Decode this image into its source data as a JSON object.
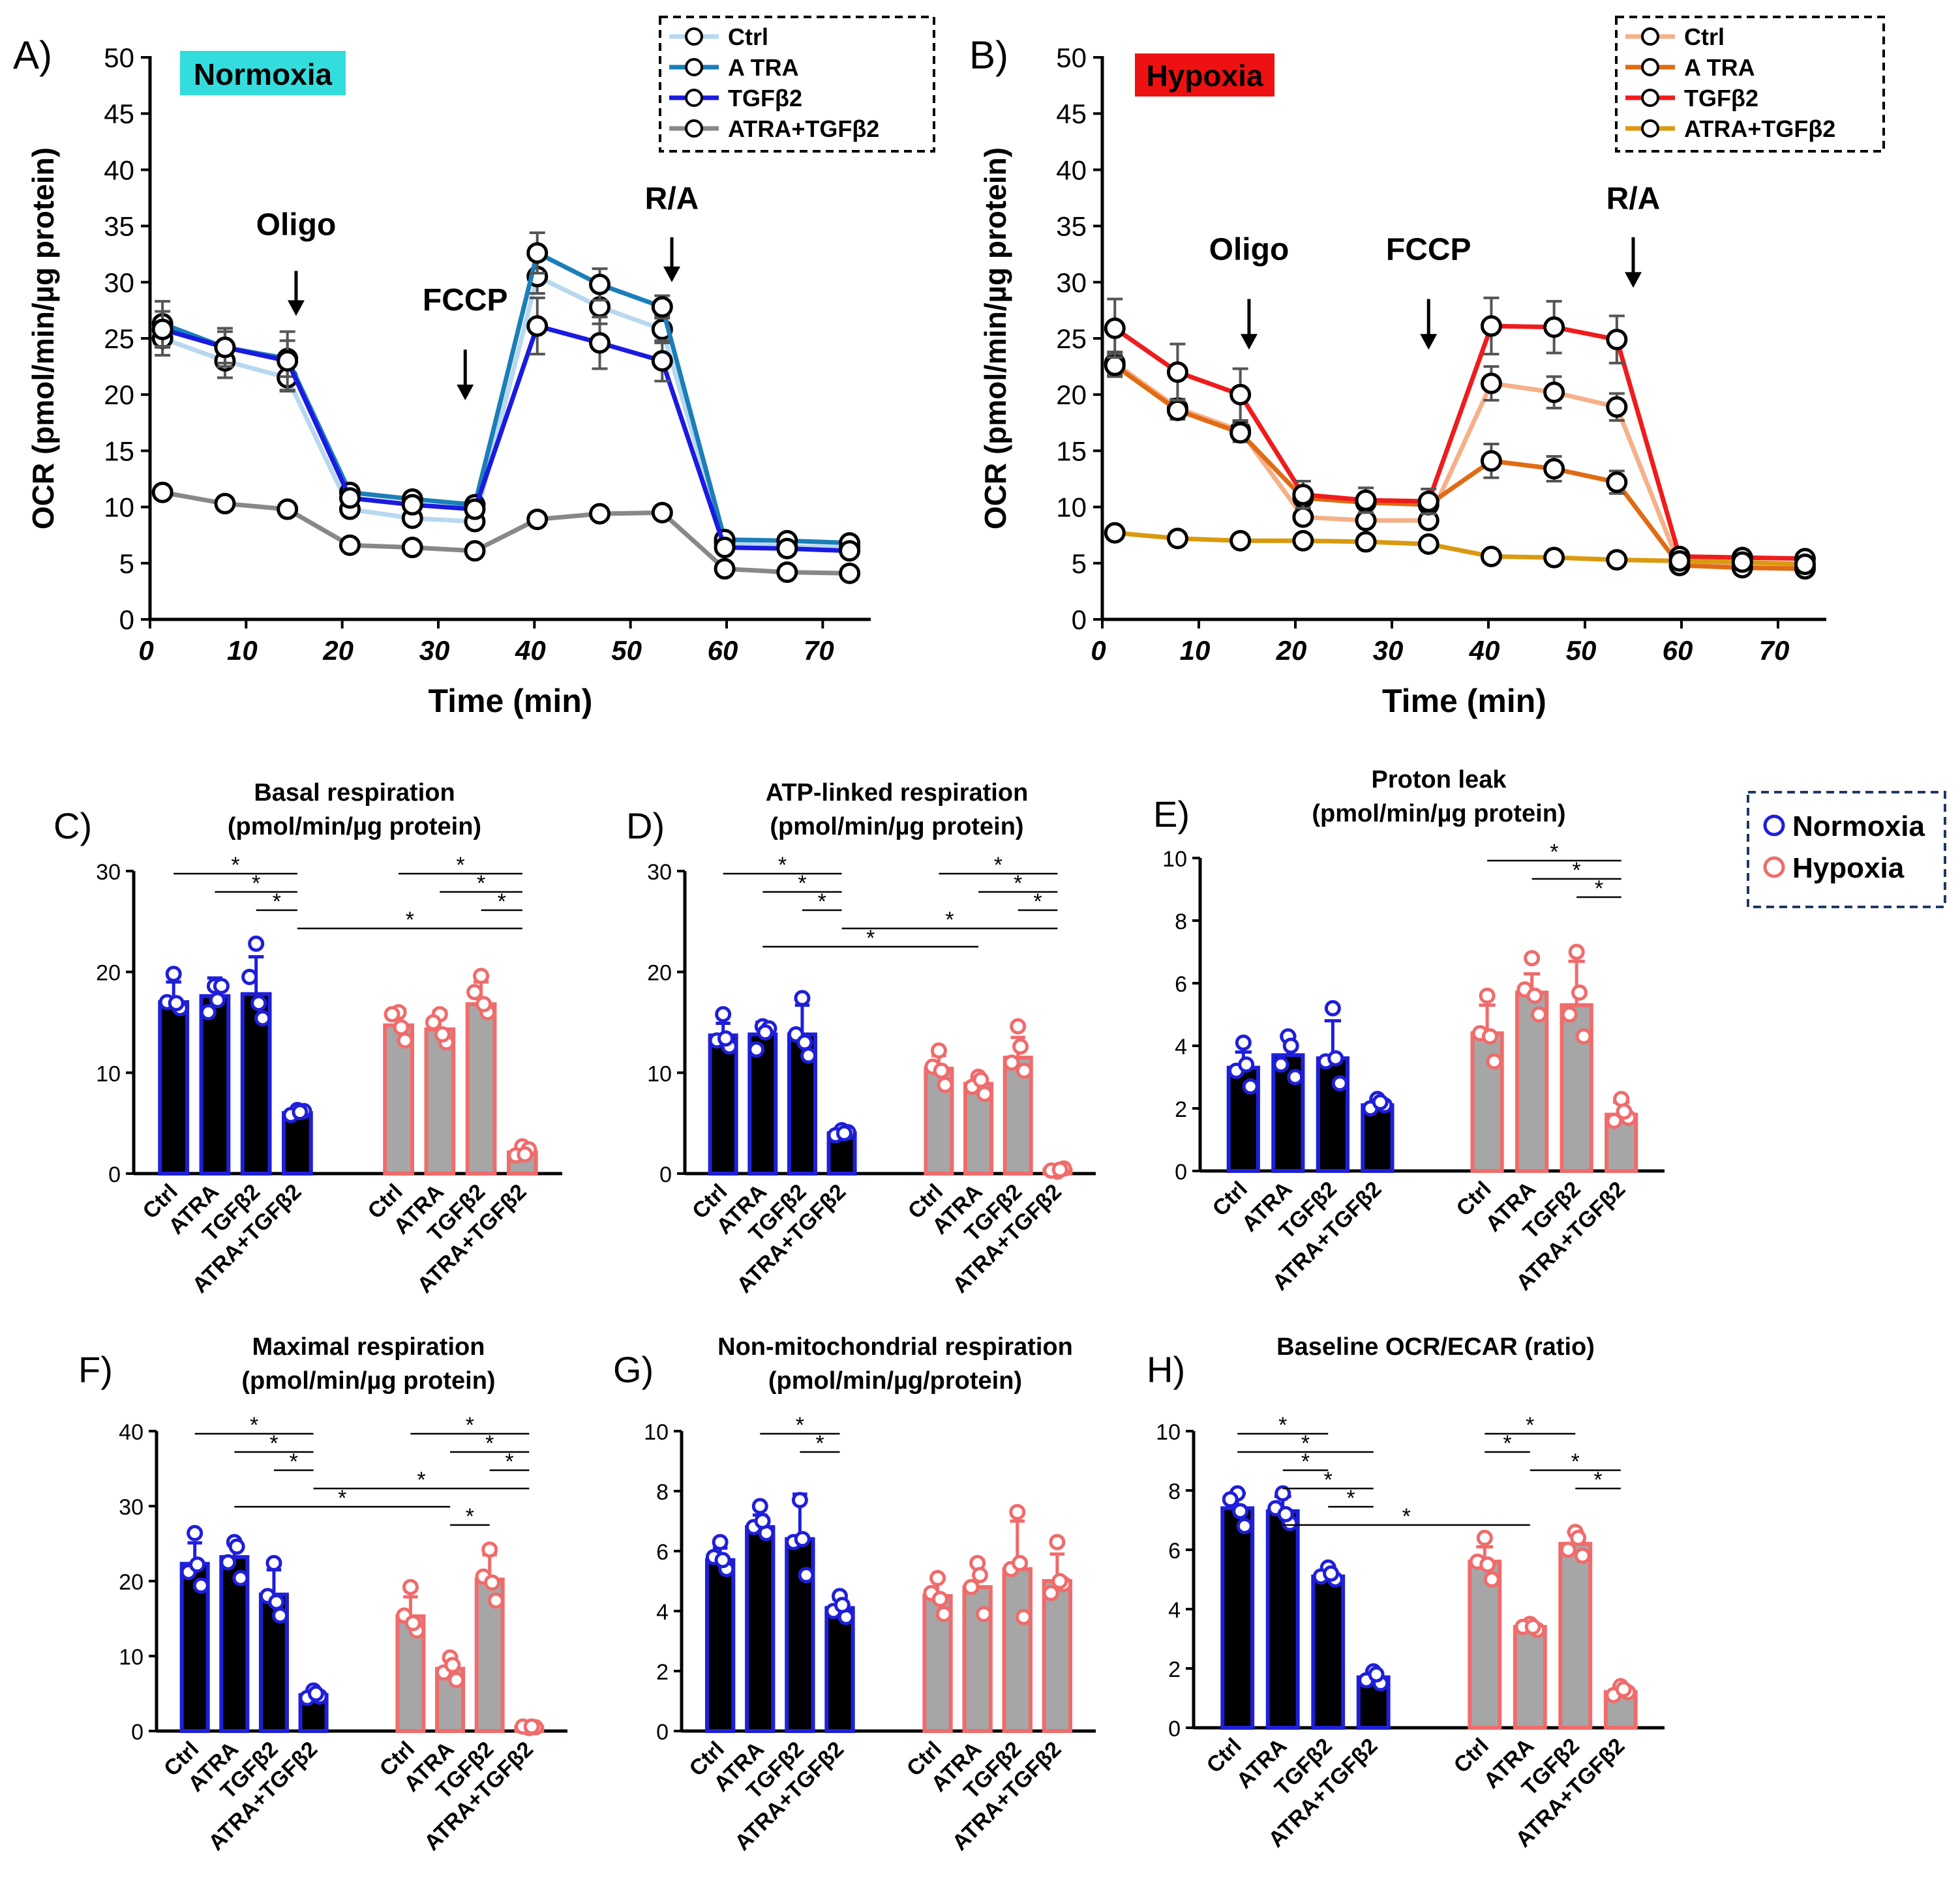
{
  "colors": {
    "normoxia_edge": "#1f1fd9",
    "hypoxia_edge": "#f06b6b",
    "normoxia_fill": "#000000",
    "hypoxia_fill": "#a6a6a6",
    "normoxia_highlight": "#33dddd",
    "hypoxia_highlight": "#ee1111"
  },
  "legend_bottom": {
    "items": [
      "Normoxia",
      "Hypoxia"
    ]
  },
  "chart_data": [
    {
      "panel": "A)",
      "type": "line",
      "badge": "Normoxia",
      "xlabel": "Time (min)",
      "ylabel": "OCR (pmol/min/µg protein)",
      "xlim": [
        0,
        75
      ],
      "ylim": [
        0,
        50
      ],
      "xticks": [
        0,
        10,
        20,
        30,
        40,
        50,
        60,
        70
      ],
      "yticks": [
        0,
        5,
        10,
        15,
        20,
        25,
        30,
        35,
        40,
        45,
        50
      ],
      "x": [
        1.3,
        7.8,
        14.3,
        20.8,
        27.3,
        33.8,
        40.3,
        46.8,
        53.3,
        59.8,
        66.3,
        72.8
      ],
      "series": [
        {
          "name": "Ctrl",
          "color": "#b8d8f0",
          "values": [
            25.0,
            23.0,
            21.5,
            9.8,
            9.0,
            8.7,
            30.5,
            27.8,
            25.8,
            6.8,
            6.5,
            6.4
          ],
          "err": [
            1.5,
            1.5,
            1.2,
            0.6,
            0.6,
            0.6,
            1.5,
            1.5,
            1.2,
            0.4,
            0.4,
            0.4
          ]
        },
        {
          "name": "A TRA",
          "color": "#1a7fb8",
          "values": [
            26.3,
            24.2,
            23.2,
            11.3,
            10.7,
            10.2,
            32.6,
            29.8,
            27.8,
            7.1,
            7.0,
            6.8
          ],
          "err": [
            2.0,
            1.7,
            1.6,
            0.6,
            0.6,
            0.6,
            1.8,
            1.4,
            1.0,
            0.4,
            0.4,
            0.4
          ]
        },
        {
          "name": "TGFβ2",
          "color": "#1a1ae0",
          "values": [
            25.8,
            24.2,
            23.0,
            10.8,
            10.2,
            9.8,
            26.1,
            24.6,
            23.0,
            6.4,
            6.3,
            6.1
          ],
          "err": [
            1.6,
            1.4,
            2.6,
            0.6,
            0.6,
            0.6,
            2.5,
            2.3,
            1.8,
            0.4,
            0.4,
            0.4
          ]
        },
        {
          "name": "ATRA+TGFβ2",
          "color": "#888888",
          "values": [
            11.3,
            10.3,
            9.8,
            6.6,
            6.4,
            6.1,
            8.9,
            9.4,
            9.5,
            4.5,
            4.2,
            4.1
          ],
          "err": [
            0.4,
            0.4,
            0.4,
            0.3,
            0.3,
            0.3,
            0.4,
            0.4,
            0.4,
            0.3,
            0.3,
            0.3
          ]
        }
      ],
      "annotations": [
        {
          "label": "Oligo",
          "x": 15.2,
          "arrow_top": 31,
          "arrow_bottom": 27,
          "label_y": 34.2
        },
        {
          "label": "FCCP",
          "x": 32.8,
          "arrow_top": 24,
          "arrow_bottom": 19.5,
          "label_y": 27.5
        },
        {
          "label": "R/A",
          "x": 54.3,
          "arrow_top": 34,
          "arrow_bottom": 30,
          "label_y": 36.5
        }
      ]
    },
    {
      "panel": "B)",
      "type": "line",
      "badge": "Hypoxia",
      "xlabel": "Time (min)",
      "ylabel": "OCR (pmol/min/µg protein)",
      "xlim": [
        0,
        75
      ],
      "ylim": [
        0,
        50
      ],
      "xticks": [
        0,
        10,
        20,
        30,
        40,
        50,
        60,
        70
      ],
      "yticks": [
        0,
        5,
        10,
        15,
        20,
        25,
        30,
        35,
        40,
        45,
        50
      ],
      "x": [
        1.3,
        7.8,
        14.3,
        20.8,
        27.3,
        33.8,
        40.3,
        46.8,
        53.3,
        59.8,
        66.3,
        72.8
      ],
      "series": [
        {
          "name": "Ctrl",
          "color": "#f6b088",
          "values": [
            22.8,
            18.8,
            16.8,
            9.1,
            8.8,
            8.8,
            21.0,
            20.2,
            18.9,
            4.8,
            4.7,
            4.6
          ],
          "err": [
            1.0,
            0.8,
            0.8,
            0.6,
            0.5,
            0.5,
            1.5,
            1.4,
            1.2,
            0.4,
            0.4,
            0.4
          ]
        },
        {
          "name": "A TRA",
          "color": "#e06b14",
          "values": [
            22.6,
            18.6,
            16.6,
            10.8,
            10.4,
            10.2,
            14.1,
            13.4,
            12.2,
            4.8,
            4.6,
            4.5
          ],
          "err": [
            1.0,
            0.8,
            0.8,
            0.6,
            0.5,
            0.5,
            1.5,
            1.1,
            1.0,
            0.4,
            0.4,
            0.4
          ]
        },
        {
          "name": "TGFβ2",
          "color": "#ee1c1c",
          "values": [
            25.9,
            22.0,
            20.0,
            11.1,
            10.6,
            10.5,
            26.1,
            26.0,
            24.9,
            5.6,
            5.5,
            5.4
          ],
          "err": [
            2.6,
            2.5,
            2.3,
            1.2,
            1.1,
            1.1,
            2.5,
            2.3,
            2.1,
            0.4,
            0.4,
            0.4
          ]
        },
        {
          "name": "ATRA+TGFβ2",
          "color": "#d99a0f",
          "values": [
            7.7,
            7.2,
            7.0,
            7.0,
            6.9,
            6.7,
            5.6,
            5.5,
            5.3,
            5.2,
            5.1,
            4.9
          ],
          "err": [
            0.3,
            0.3,
            0.3,
            0.3,
            0.3,
            0.3,
            0.3,
            0.3,
            0.3,
            0.3,
            0.3,
            0.3
          ]
        }
      ],
      "annotations": [
        {
          "label": "Oligo",
          "x": 15.2,
          "arrow_top": 28.5,
          "arrow_bottom": 24,
          "label_y": 32.0
        },
        {
          "label": "FCCP",
          "x": 33.8,
          "arrow_top": 28.5,
          "arrow_bottom": 24,
          "label_y": 32.0
        },
        {
          "label": "R/A",
          "x": 55.0,
          "arrow_top": 34,
          "arrow_bottom": 29.5,
          "label_y": 36.5
        }
      ]
    },
    {
      "panel": "C)",
      "type": "bar",
      "title": [
        "Basal respiration",
        "(pmol/min/µg protein)"
      ],
      "ylim": [
        0,
        30
      ],
      "yticks": [
        0,
        10,
        20,
        30
      ],
      "categories": [
        "Ctrl",
        "ATRA",
        "TGFβ2",
        "ATRA+TGFβ2",
        "Ctrl",
        "ATRA",
        "TGFβ2",
        "ATRA+TGFβ2"
      ],
      "groups": [
        "Normoxia",
        "Normoxia",
        "Normoxia",
        "Normoxia",
        "Hypoxia",
        "Hypoxia",
        "Hypoxia",
        "Hypoxia"
      ],
      "values": [
        17.0,
        17.6,
        17.8,
        6.0,
        14.7,
        14.3,
        16.8,
        2.1
      ],
      "err": [
        2.0,
        1.8,
        3.7,
        0.4,
        1.6,
        1.8,
        2.2,
        0.6
      ],
      "points": [
        [
          19.8,
          17.0,
          16.4,
          16.9
        ],
        [
          18.6,
          16.0,
          18.6,
          17.2
        ],
        [
          22.8,
          19.5,
          15.4,
          16.9
        ],
        [
          6.3,
          5.8,
          6.2,
          6.1
        ],
        [
          16.0,
          15.8,
          13.2,
          14.5
        ],
        [
          15.8,
          15.0,
          13.0,
          13.8
        ],
        [
          19.6,
          18.0,
          16.0,
          16.8
        ],
        [
          2.7,
          1.8,
          2.4,
          1.9
        ]
      ],
      "sig": [
        {
          "from": 0,
          "to": 3,
          "level": 0
        },
        {
          "from": 1,
          "to": 3,
          "level": 1
        },
        {
          "from": 2,
          "to": 3,
          "level": 2
        },
        {
          "from": 4,
          "to": 7,
          "level": 0
        },
        {
          "from": 5,
          "to": 7,
          "level": 1
        },
        {
          "from": 6,
          "to": 7,
          "level": 2
        },
        {
          "from": 3,
          "to": 7,
          "level": 3
        }
      ]
    },
    {
      "panel": "D)",
      "type": "bar",
      "title": [
        "ATP-linked respiration",
        "(pmol/min/µg protein)"
      ],
      "ylim": [
        0,
        30
      ],
      "yticks": [
        0,
        10,
        20,
        30
      ],
      "categories": [
        "Ctrl",
        "ATRA",
        "TGFβ2",
        "ATRA+TGFβ2",
        "Ctrl",
        "ATRA",
        "TGFβ2",
        "ATRA+TGFβ2"
      ],
      "groups": [
        "Normoxia",
        "Normoxia",
        "Normoxia",
        "Normoxia",
        "Hypoxia",
        "Hypoxia",
        "Hypoxia",
        "Hypoxia"
      ],
      "values": [
        13.7,
        13.8,
        13.8,
        4.0,
        10.4,
        8.9,
        11.5,
        0.4
      ],
      "err": [
        1.2,
        1.2,
        2.9,
        0.3,
        1.3,
        0.9,
        2.0,
        0.2
      ],
      "points": [
        [
          15.8,
          13.2,
          12.6,
          13.4
        ],
        [
          14.6,
          12.3,
          14.4,
          14.0
        ],
        [
          17.4,
          13.8,
          11.7,
          13.0
        ],
        [
          4.3,
          3.8,
          4.1,
          4.0
        ],
        [
          12.2,
          10.6,
          8.8,
          10.2
        ],
        [
          9.6,
          8.6,
          7.9,
          9.3
        ],
        [
          14.6,
          11.0,
          10.2,
          12.6
        ],
        [
          0.2,
          0.3,
          0.5,
          0.4
        ]
      ],
      "sig": [
        {
          "from": 0,
          "to": 3,
          "level": 0
        },
        {
          "from": 1,
          "to": 3,
          "level": 1
        },
        {
          "from": 2,
          "to": 3,
          "level": 2
        },
        {
          "from": 4,
          "to": 7,
          "level": 0
        },
        {
          "from": 5,
          "to": 7,
          "level": 1
        },
        {
          "from": 6,
          "to": 7,
          "level": 2
        },
        {
          "from": 3,
          "to": 7,
          "level": 3
        },
        {
          "from": 1,
          "to": 5,
          "level": 4
        }
      ]
    },
    {
      "panel": "E)",
      "type": "bar",
      "title": [
        "Proton leak",
        "(pmol/min/µg protein)"
      ],
      "ylim": [
        0,
        10
      ],
      "yticks": [
        0,
        2,
        4,
        6,
        8,
        10
      ],
      "categories": [
        "Ctrl",
        "ATRA",
        "TGFβ2",
        "ATRA+TGFβ2",
        "Ctrl",
        "ATRA",
        "TGFβ2",
        "ATRA+TGFβ2"
      ],
      "groups": [
        "Normoxia",
        "Normoxia",
        "Normoxia",
        "Normoxia",
        "Hypoxia",
        "Hypoxia",
        "Hypoxia",
        "Hypoxia"
      ],
      "values": [
        3.3,
        3.7,
        3.6,
        2.1,
        4.4,
        5.7,
        5.3,
        1.8
      ],
      "err": [
        0.5,
        0.6,
        1.2,
        0.2,
        0.9,
        0.6,
        1.4,
        0.4
      ],
      "points": [
        [
          4.1,
          3.2,
          2.7,
          3.4
        ],
        [
          4.3,
          3.4,
          3.0,
          4.0
        ],
        [
          5.2,
          3.5,
          2.8,
          3.6
        ],
        [
          2.3,
          2.0,
          2.1,
          2.2
        ],
        [
          5.6,
          4.4,
          3.5,
          4.3
        ],
        [
          6.8,
          5.8,
          5.0,
          5.6
        ],
        [
          7.0,
          5.0,
          4.3,
          5.7
        ],
        [
          2.3,
          1.6,
          1.7,
          1.9
        ]
      ],
      "sig": [
        {
          "from": 4,
          "to": 7,
          "level": 0
        },
        {
          "from": 5,
          "to": 7,
          "level": 1
        },
        {
          "from": 6,
          "to": 7,
          "level": 2
        }
      ]
    },
    {
      "panel": "F)",
      "type": "bar",
      "title": [
        "Maximal respiration",
        "(pmol/min/µg protein)"
      ],
      "ylim": [
        0,
        40
      ],
      "yticks": [
        0,
        10,
        20,
        30,
        40
      ],
      "categories": [
        "Ctrl",
        "ATRA",
        "TGFβ2",
        "ATRA+TGFβ2",
        "Ctrl",
        "ATRA",
        "TGFβ2",
        "ATRA+TGFβ2"
      ],
      "groups": [
        "Normoxia",
        "Normoxia",
        "Normoxia",
        "Normoxia",
        "Hypoxia",
        "Hypoxia",
        "Hypoxia",
        "Hypoxia"
      ],
      "values": [
        22.3,
        23.2,
        18.2,
        4.8,
        15.3,
        8.3,
        20.2,
        0.5
      ],
      "err": [
        2.8,
        2.0,
        3.3,
        0.5,
        2.6,
        1.5,
        3.3,
        0.3
      ],
      "points": [
        [
          26.4,
          21.2,
          19.4,
          22.2
        ],
        [
          25.2,
          22.5,
          20.4,
          24.6
        ],
        [
          22.4,
          18.0,
          15.4,
          17.2
        ],
        [
          5.4,
          4.4,
          4.6,
          5.0
        ],
        [
          19.2,
          15.4,
          13.4,
          14.4
        ],
        [
          9.8,
          7.8,
          6.8,
          8.8
        ],
        [
          24.2,
          20.6,
          17.4,
          19.8
        ],
        [
          0.4,
          0.6,
          0.5,
          0.6
        ]
      ],
      "sig": [
        {
          "from": 0,
          "to": 3,
          "level": 0
        },
        {
          "from": 1,
          "to": 3,
          "level": 1
        },
        {
          "from": 2,
          "to": 3,
          "level": 2
        },
        {
          "from": 4,
          "to": 7,
          "level": 0
        },
        {
          "from": 5,
          "to": 7,
          "level": 1
        },
        {
          "from": 6,
          "to": 7,
          "level": 2
        },
        {
          "from": 3,
          "to": 7,
          "level": 3
        },
        {
          "from": 1,
          "to": 5,
          "level": 4
        },
        {
          "from": 5,
          "to": 6,
          "level": 5
        }
      ]
    },
    {
      "panel": "G)",
      "type": "bar",
      "title": [
        "Non-mitochondrial respiration",
        "(pmol/min/µg/protein)"
      ],
      "ylim": [
        0,
        10
      ],
      "yticks": [
        0,
        2,
        4,
        6,
        8,
        10
      ],
      "categories": [
        "Ctrl",
        "ATRA",
        "TGFβ2",
        "ATRA+TGFβ2",
        "Ctrl",
        "ATRA",
        "TGFβ2",
        "ATRA+TGFβ2"
      ],
      "groups": [
        "Normoxia",
        "Normoxia",
        "Normoxia",
        "Normoxia",
        "Hypoxia",
        "Hypoxia",
        "Hypoxia",
        "Hypoxia"
      ],
      "values": [
        5.7,
        6.8,
        6.4,
        4.1,
        4.5,
        4.8,
        5.4,
        5.0
      ],
      "err": [
        0.4,
        0.4,
        1.5,
        0.3,
        0.6,
        0.9,
        1.6,
        0.9
      ],
      "points": [
        [
          6.3,
          5.8,
          5.4,
          5.7
        ],
        [
          7.5,
          6.8,
          6.6,
          7.0
        ],
        [
          7.7,
          6.3,
          5.2,
          6.4
        ],
        [
          4.5,
          4.0,
          3.8,
          4.2
        ],
        [
          5.1,
          4.6,
          3.9,
          4.4
        ],
        [
          5.6,
          4.8,
          3.9,
          5.2
        ],
        [
          7.3,
          5.4,
          3.8,
          5.6
        ],
        [
          6.3,
          4.6,
          4.9,
          5.0
        ]
      ],
      "sig": [
        {
          "from": 1,
          "to": 3,
          "level": 0
        },
        {
          "from": 2,
          "to": 3,
          "level": 1
        }
      ]
    },
    {
      "panel": "H)",
      "type": "bar",
      "title": [
        "Baseline OCR/ECAR (ratio)"
      ],
      "ylim": [
        0,
        10
      ],
      "yticks": [
        0,
        2,
        4,
        6,
        8,
        10
      ],
      "categories": [
        "Ctrl",
        "ATRA",
        "TGFβ2",
        "ATRA+TGFβ2",
        "Ctrl",
        "ATRA",
        "TGFβ2",
        "ATRA+TGFβ2"
      ],
      "groups": [
        "Normoxia",
        "Normoxia",
        "Normoxia",
        "Normoxia",
        "Hypoxia",
        "Hypoxia",
        "Hypoxia",
        "Hypoxia"
      ],
      "values": [
        7.4,
        7.3,
        5.1,
        1.7,
        5.6,
        3.4,
        6.2,
        1.2
      ],
      "err": [
        0.5,
        0.5,
        0.2,
        0.2,
        0.5,
        0.1,
        0.4,
        0.2
      ],
      "points": [
        [
          7.9,
          7.7,
          6.8,
          7.3
        ],
        [
          7.9,
          7.4,
          6.9,
          7.2
        ],
        [
          5.4,
          5.1,
          5.0,
          5.2
        ],
        [
          1.9,
          1.6,
          1.5,
          1.8
        ],
        [
          6.4,
          5.6,
          5.0,
          5.5
        ],
        [
          3.5,
          3.4,
          3.3,
          3.4
        ],
        [
          6.6,
          6.0,
          5.8,
          6.4
        ],
        [
          1.4,
          1.1,
          1.2,
          1.3
        ]
      ],
      "sig": [
        {
          "from": 0,
          "to": 2,
          "level": 0
        },
        {
          "from": 0,
          "to": 3,
          "level": 1
        },
        {
          "from": 1,
          "to": 2,
          "level": 2
        },
        {
          "from": 1,
          "to": 3,
          "level": 3
        },
        {
          "from": 2,
          "to": 3,
          "level": 4
        },
        {
          "from": 1,
          "to": 5,
          "level": 5
        },
        {
          "from": 4,
          "to": 6,
          "level": 0
        },
        {
          "from": 4,
          "to": 5,
          "level": 1
        },
        {
          "from": 5,
          "to": 7,
          "level": 2
        },
        {
          "from": 6,
          "to": 7,
          "level": 3
        }
      ]
    }
  ]
}
